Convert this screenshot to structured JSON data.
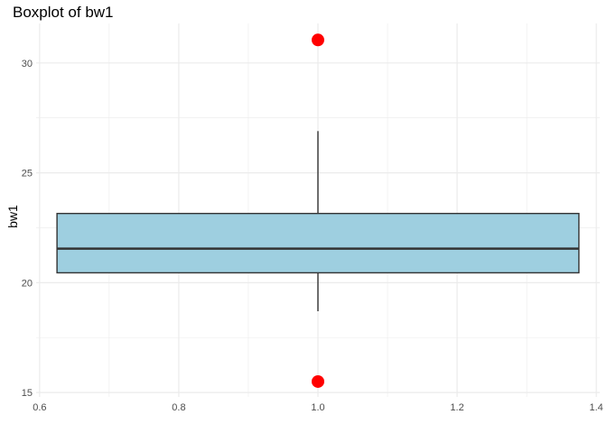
{
  "chart_data": {
    "type": "boxplot",
    "title": "Boxplot of bw1",
    "xlabel": "",
    "ylabel": "bw1",
    "x_ticks": [
      "0.6",
      "0.8",
      "1.0",
      "1.2",
      "1.4"
    ],
    "y_ticks": [
      "15",
      "20",
      "25",
      "30"
    ],
    "xlim": [
      0.595,
      1.405
    ],
    "ylim": [
      14.8,
      31.8
    ],
    "grid": true,
    "box": {
      "x": 1.0,
      "x_range": [
        0.625,
        1.375
      ],
      "q1": 20.45,
      "median": 21.55,
      "q3": 23.15,
      "whisker_low": 18.7,
      "whisker_high": 26.9
    },
    "outliers": [
      {
        "x": 1.0,
        "y": 31.05
      },
      {
        "x": 1.0,
        "y": 15.5
      }
    ],
    "colors": {
      "box_fill": "#9ecfe0",
      "box_stroke": "#333333",
      "outlier": "#ff0000",
      "grid": "#ebebeb"
    }
  }
}
